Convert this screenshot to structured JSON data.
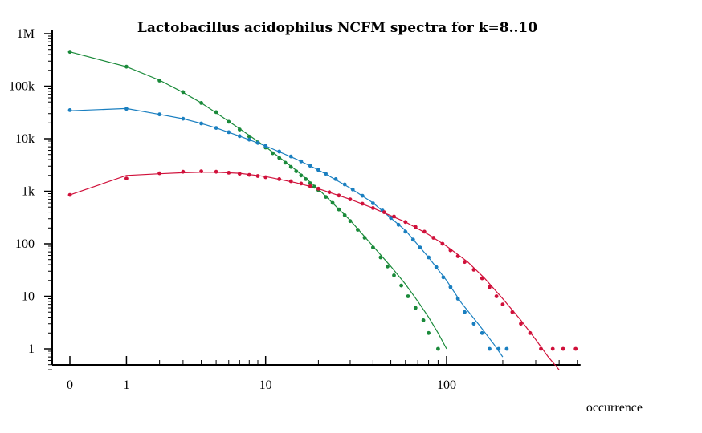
{
  "chart_data": {
    "type": "scatter",
    "title": "Lactobacillus acidophilus NCFM spectra for k=8..10",
    "xlabel": "occurrence",
    "ylabel": "",
    "x_scale": "log(1+x)",
    "y_scale": "log",
    "xlim": [
      0,
      520
    ],
    "ylim": [
      0.38,
      1000000
    ],
    "x_ticks": [
      {
        "value": 0,
        "label": "0"
      },
      {
        "value": 1,
        "label": "1"
      },
      {
        "value": 10,
        "label": "10"
      },
      {
        "value": 100,
        "label": "100"
      }
    ],
    "y_ticks": [
      {
        "value": 1,
        "label": "1"
      },
      {
        "value": 10,
        "label": "10"
      },
      {
        "value": 100,
        "label": "100"
      },
      {
        "value": 1000,
        "label": "1k"
      },
      {
        "value": 10000,
        "label": "10k"
      },
      {
        "value": 100000,
        "label": "100k"
      },
      {
        "value": 1000000,
        "label": "1M"
      }
    ],
    "legend": "none",
    "grid": false,
    "series": [
      {
        "color": "#1a8a3a",
        "points": [
          [
            0,
            450000
          ],
          [
            1,
            235000
          ],
          [
            2,
            128000
          ],
          [
            3,
            77000
          ],
          [
            4,
            48000
          ],
          [
            5,
            32000
          ],
          [
            6,
            21000
          ],
          [
            7,
            15000
          ],
          [
            8,
            11000
          ],
          [
            9,
            8500
          ],
          [
            10,
            6800
          ],
          [
            11,
            5300
          ],
          [
            12,
            4300
          ],
          [
            13,
            3500
          ],
          [
            14,
            2900
          ],
          [
            15,
            2400
          ],
          [
            16,
            2000
          ],
          [
            17,
            1700
          ],
          [
            18,
            1420
          ],
          [
            19,
            1220
          ],
          [
            20,
            1050
          ],
          [
            22,
            780
          ],
          [
            24,
            600
          ],
          [
            26,
            450
          ],
          [
            28,
            350
          ],
          [
            30,
            270
          ],
          [
            33,
            185
          ],
          [
            36,
            130
          ],
          [
            40,
            85
          ],
          [
            44,
            55
          ],
          [
            48,
            37
          ],
          [
            52,
            25
          ],
          [
            57,
            16
          ],
          [
            62,
            10
          ],
          [
            68,
            6
          ],
          [
            75,
            3.5
          ],
          [
            80,
            2
          ],
          [
            90,
            1
          ]
        ],
        "fit": [
          [
            0,
            450000
          ],
          [
            1,
            235000
          ],
          [
            2,
            130000
          ],
          [
            3,
            76000
          ],
          [
            4,
            48000
          ],
          [
            5,
            31000
          ],
          [
            7,
            15500
          ],
          [
            10,
            7000
          ],
          [
            15,
            2500
          ],
          [
            20,
            1100
          ],
          [
            30,
            280
          ],
          [
            40,
            90
          ],
          [
            50,
            37
          ],
          [
            60,
            17
          ],
          [
            70,
            8
          ],
          [
            80,
            4
          ],
          [
            90,
            2
          ],
          [
            100,
            1
          ]
        ]
      },
      {
        "color": "#1a7fc0",
        "points": [
          [
            0,
            35000
          ],
          [
            1,
            37000
          ],
          [
            2,
            29000
          ],
          [
            3,
            24000
          ],
          [
            4,
            19500
          ],
          [
            5,
            16000
          ],
          [
            6,
            13300
          ],
          [
            7,
            11200
          ],
          [
            8,
            9600
          ],
          [
            9,
            8300
          ],
          [
            10,
            7300
          ],
          [
            12,
            5700
          ],
          [
            14,
            4600
          ],
          [
            16,
            3700
          ],
          [
            18,
            3050
          ],
          [
            20,
            2550
          ],
          [
            22,
            2150
          ],
          [
            25,
            1700
          ],
          [
            28,
            1350
          ],
          [
            31,
            1080
          ],
          [
            35,
            820
          ],
          [
            40,
            590
          ],
          [
            45,
            430
          ],
          [
            50,
            310
          ],
          [
            55,
            230
          ],
          [
            60,
            170
          ],
          [
            66,
            120
          ],
          [
            72,
            85
          ],
          [
            80,
            55
          ],
          [
            88,
            36
          ],
          [
            96,
            23
          ],
          [
            105,
            15
          ],
          [
            115,
            9
          ],
          [
            125,
            5
          ],
          [
            140,
            3
          ],
          [
            155,
            2
          ],
          [
            170,
            1
          ],
          [
            190,
            1
          ],
          [
            210,
            1
          ]
        ],
        "fit": [
          [
            0,
            34000
          ],
          [
            1,
            37500
          ],
          [
            2,
            29000
          ],
          [
            3,
            24000
          ],
          [
            4,
            19500
          ],
          [
            5,
            16000
          ],
          [
            7,
            11200
          ],
          [
            10,
            7300
          ],
          [
            15,
            4100
          ],
          [
            20,
            2550
          ],
          [
            30,
            1150
          ],
          [
            40,
            600
          ],
          [
            60,
            180
          ],
          [
            80,
            55
          ],
          [
            100,
            20
          ],
          [
            120,
            7.5
          ],
          [
            150,
            2.8
          ],
          [
            180,
            1.2
          ],
          [
            200,
            0.7
          ]
        ]
      },
      {
        "color": "#d0103a",
        "points": [
          [
            0,
            850
          ],
          [
            1,
            1750
          ],
          [
            2,
            2200
          ],
          [
            3,
            2350
          ],
          [
            4,
            2400
          ],
          [
            5,
            2350
          ],
          [
            6,
            2250
          ],
          [
            7,
            2150
          ],
          [
            8,
            2050
          ],
          [
            9,
            1950
          ],
          [
            10,
            1850
          ],
          [
            12,
            1700
          ],
          [
            14,
            1550
          ],
          [
            16,
            1400
          ],
          [
            18,
            1250
          ],
          [
            20,
            1120
          ],
          [
            23,
            960
          ],
          [
            26,
            830
          ],
          [
            30,
            700
          ],
          [
            35,
            580
          ],
          [
            40,
            480
          ],
          [
            46,
            400
          ],
          [
            52,
            330
          ],
          [
            60,
            260
          ],
          [
            68,
            210
          ],
          [
            76,
            170
          ],
          [
            85,
            130
          ],
          [
            95,
            100
          ],
          [
            105,
            75
          ],
          [
            115,
            58
          ],
          [
            125,
            45
          ],
          [
            140,
            32
          ],
          [
            155,
            22
          ],
          [
            170,
            15
          ],
          [
            185,
            10
          ],
          [
            200,
            7
          ],
          [
            225,
            5
          ],
          [
            250,
            3
          ],
          [
            280,
            2
          ],
          [
            320,
            1
          ],
          [
            370,
            1
          ],
          [
            420,
            1
          ],
          [
            490,
            1
          ]
        ],
        "fit": [
          [
            0,
            850
          ],
          [
            1,
            2000
          ],
          [
            2,
            2150
          ],
          [
            3,
            2250
          ],
          [
            4,
            2300
          ],
          [
            5,
            2300
          ],
          [
            7,
            2200
          ],
          [
            10,
            1900
          ],
          [
            15,
            1450
          ],
          [
            20,
            1120
          ],
          [
            30,
            700
          ],
          [
            40,
            480
          ],
          [
            60,
            260
          ],
          [
            80,
            150
          ],
          [
            100,
            90
          ],
          [
            130,
            45
          ],
          [
            160,
            22
          ],
          [
            200,
            9
          ],
          [
            250,
            3.5
          ],
          [
            300,
            1.5
          ],
          [
            350,
            0.7
          ],
          [
            400,
            0.4
          ]
        ]
      }
    ]
  }
}
